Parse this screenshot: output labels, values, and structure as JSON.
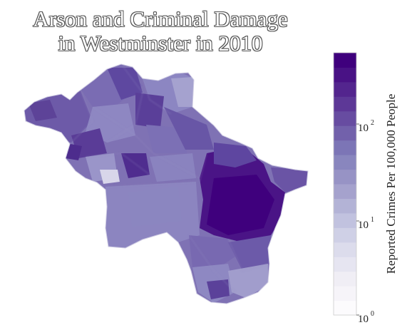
{
  "title": {
    "line1": "Arson and Criminal Damage",
    "line2": "in Westminster in 2010"
  },
  "colorbar": {
    "label": "Reported Crimes Per 100,000 People",
    "scale": "log",
    "range": [
      1,
      600
    ],
    "ticks": [
      {
        "base": "10",
        "exp": "0",
        "value": 1
      },
      {
        "base": "10",
        "exp": "1",
        "value": 10
      },
      {
        "base": "10",
        "exp": "2",
        "value": 100
      }
    ],
    "colors": [
      "#fcfbfd",
      "#efedf5",
      "#dadaeb",
      "#bcbddc",
      "#9e9ac8",
      "#807dba",
      "#6a51a3",
      "#54278f",
      "#3f007d"
    ]
  },
  "map": {
    "region": "Westminster",
    "color_low": "#fcfbfd",
    "color_high": "#3f007d",
    "hotspot_color": "#4a1486"
  }
}
